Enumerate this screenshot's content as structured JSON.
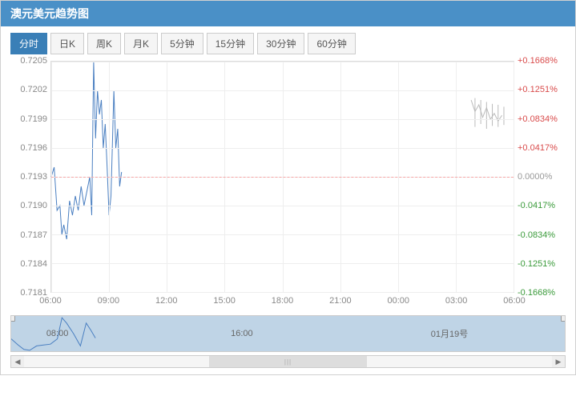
{
  "header": {
    "title": "澳元美元趋势图"
  },
  "tabs": {
    "items": [
      "分时",
      "日K",
      "周K",
      "月K",
      "5分钟",
      "15分钟",
      "30分钟",
      "60分钟"
    ],
    "active_index": 0
  },
  "chart": {
    "type": "line",
    "line_color": "#4a7fc1",
    "line_width": 1,
    "grid_color": "#eeeeee",
    "border_color": "#dddddd",
    "background_color": "#ffffff",
    "ref_value": 0.7193,
    "ref_line_color": "#f7a6a6",
    "y_left": {
      "min": 0.7181,
      "max": 0.7205,
      "step": 0.0003,
      "ticks": [
        {
          "v": 0.7205,
          "label": "0.7205"
        },
        {
          "v": 0.7202,
          "label": "0.7202"
        },
        {
          "v": 0.7199,
          "label": "0.7199"
        },
        {
          "v": 0.7196,
          "label": "0.7196"
        },
        {
          "v": 0.7193,
          "label": "0.7193"
        },
        {
          "v": 0.719,
          "label": "0.7190"
        },
        {
          "v": 0.7187,
          "label": "0.7187"
        },
        {
          "v": 0.7184,
          "label": "0.7184"
        },
        {
          "v": 0.7181,
          "label": "0.7181"
        }
      ],
      "label_color": "#888888",
      "label_fontsize": 11
    },
    "y_right": {
      "ticks": [
        {
          "v": 0.7205,
          "label": "+0.1668%",
          "color": "#d94b4b"
        },
        {
          "v": 0.7202,
          "label": "+0.1251%",
          "color": "#d94b4b"
        },
        {
          "v": 0.7199,
          "label": "+0.0834%",
          "color": "#d94b4b"
        },
        {
          "v": 0.7196,
          "label": "+0.0417%",
          "color": "#d94b4b"
        },
        {
          "v": 0.7193,
          "label": "0.0000%",
          "color": "#999999"
        },
        {
          "v": 0.719,
          "label": "-0.0417%",
          "color": "#3a9a3a"
        },
        {
          "v": 0.7187,
          "label": "-0.0834%",
          "color": "#3a9a3a"
        },
        {
          "v": 0.7184,
          "label": "-0.1251%",
          "color": "#3a9a3a"
        },
        {
          "v": 0.7181,
          "label": "-0.1668%",
          "color": "#3a9a3a"
        }
      ],
      "label_fontsize": 11
    },
    "x": {
      "min": 0,
      "max": 24,
      "ticks": [
        {
          "t": 0,
          "label": "06:00"
        },
        {
          "t": 3,
          "label": "09:00"
        },
        {
          "t": 6,
          "label": "12:00"
        },
        {
          "t": 9,
          "label": "15:00"
        },
        {
          "t": 12,
          "label": "18:00"
        },
        {
          "t": 15,
          "label": "21:00"
        },
        {
          "t": 18,
          "label": "00:00"
        },
        {
          "t": 21,
          "label": "03:00"
        },
        {
          "t": 24,
          "label": "06:00"
        }
      ],
      "label_color": "#888888",
      "label_fontsize": 11
    },
    "series_main": [
      {
        "t": 0.0,
        "v": 0.7193
      },
      {
        "t": 0.15,
        "v": 0.7194
      },
      {
        "t": 0.3,
        "v": 0.71895
      },
      {
        "t": 0.45,
        "v": 0.719
      },
      {
        "t": 0.55,
        "v": 0.7187
      },
      {
        "t": 0.65,
        "v": 0.7188
      },
      {
        "t": 0.8,
        "v": 0.71865
      },
      {
        "t": 0.95,
        "v": 0.71905
      },
      {
        "t": 1.1,
        "v": 0.7189
      },
      {
        "t": 1.25,
        "v": 0.7191
      },
      {
        "t": 1.4,
        "v": 0.71895
      },
      {
        "t": 1.55,
        "v": 0.7192
      },
      {
        "t": 1.7,
        "v": 0.719
      },
      {
        "t": 1.85,
        "v": 0.71915
      },
      {
        "t": 2.0,
        "v": 0.7193
      },
      {
        "t": 2.1,
        "v": 0.7189
      },
      {
        "t": 2.2,
        "v": 0.7205
      },
      {
        "t": 2.3,
        "v": 0.7197
      },
      {
        "t": 2.4,
        "v": 0.7202
      },
      {
        "t": 2.5,
        "v": 0.71995
      },
      {
        "t": 2.6,
        "v": 0.7201
      },
      {
        "t": 2.7,
        "v": 0.7196
      },
      {
        "t": 2.8,
        "v": 0.71985
      },
      {
        "t": 2.9,
        "v": 0.7194
      },
      {
        "t": 3.0,
        "v": 0.7189
      },
      {
        "t": 3.1,
        "v": 0.7191
      },
      {
        "t": 3.25,
        "v": 0.7202
      },
      {
        "t": 3.35,
        "v": 0.7196
      },
      {
        "t": 3.45,
        "v": 0.7198
      },
      {
        "t": 3.55,
        "v": 0.7192
      },
      {
        "t": 3.65,
        "v": 0.71935
      }
    ],
    "series_late": [
      {
        "t": 21.8,
        "v": 0.7201
      },
      {
        "t": 22.0,
        "v": 0.71998
      },
      {
        "t": 22.2,
        "v": 0.72005
      },
      {
        "t": 22.4,
        "v": 0.71992
      },
      {
        "t": 22.6,
        "v": 0.72002
      },
      {
        "t": 22.8,
        "v": 0.7199
      },
      {
        "t": 23.0,
        "v": 0.71996
      },
      {
        "t": 23.2,
        "v": 0.71988
      },
      {
        "t": 23.4,
        "v": 0.71994
      }
    ],
    "bars_late": [
      {
        "t": 22.0,
        "hi": 0.72012,
        "lo": 0.71982
      },
      {
        "t": 22.3,
        "hi": 0.7201,
        "lo": 0.71985
      },
      {
        "t": 22.6,
        "hi": 0.72008,
        "lo": 0.7198
      },
      {
        "t": 22.9,
        "hi": 0.72006,
        "lo": 0.71983
      },
      {
        "t": 23.2,
        "hi": 0.72005,
        "lo": 0.71982
      },
      {
        "t": 23.5,
        "hi": 0.72003,
        "lo": 0.71984
      }
    ],
    "bar_color": "#bbbbbb"
  },
  "overview": {
    "x_min": 0,
    "x_max": 24,
    "y_min": 0.7186,
    "y_max": 0.7206,
    "background": "#bfd4e6",
    "line_color": "#4a7fc1",
    "labels": [
      {
        "t": 2,
        "label": "08:00"
      },
      {
        "t": 10,
        "label": "16:00"
      },
      {
        "t": 19,
        "label": "01月19号"
      }
    ],
    "handles": [
      {
        "t": 0
      },
      {
        "t": 24
      }
    ],
    "series": [
      {
        "t": 0.0,
        "v": 0.7193
      },
      {
        "t": 0.3,
        "v": 0.71895
      },
      {
        "t": 0.55,
        "v": 0.7187
      },
      {
        "t": 0.8,
        "v": 0.71865
      },
      {
        "t": 1.1,
        "v": 0.7189
      },
      {
        "t": 1.4,
        "v": 0.71895
      },
      {
        "t": 1.7,
        "v": 0.719
      },
      {
        "t": 2.0,
        "v": 0.7193
      },
      {
        "t": 2.2,
        "v": 0.7205
      },
      {
        "t": 2.4,
        "v": 0.7202
      },
      {
        "t": 2.7,
        "v": 0.7196
      },
      {
        "t": 3.0,
        "v": 0.7189
      },
      {
        "t": 3.25,
        "v": 0.7202
      },
      {
        "t": 3.45,
        "v": 0.7198
      },
      {
        "t": 3.65,
        "v": 0.71935
      }
    ]
  },
  "scrollbar": {
    "thumb_left_pct": 35,
    "thumb_width_pct": 30
  }
}
